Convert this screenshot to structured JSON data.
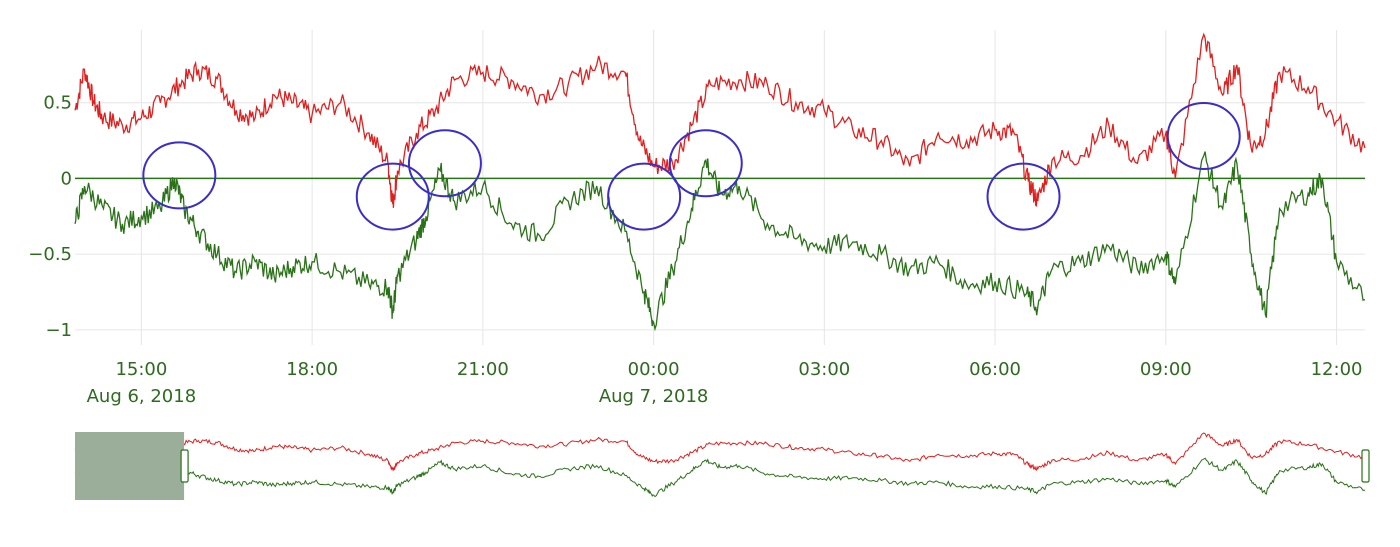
{
  "chart_data": {
    "type": "line",
    "x_range": [
      "2018-08-06T13:50",
      "2018-08-07T12:30"
    ],
    "ylim": [
      -1.1,
      0.98
    ],
    "y_ticks": [
      0.5,
      0,
      -0.5,
      -1
    ],
    "y_tick_labels": [
      "0.5",
      "0",
      "−0.5",
      "−1"
    ],
    "x_ticks": [
      {
        "time": "2018-08-06T15:00",
        "label": "15:00",
        "date_label": "Aug 6, 2018"
      },
      {
        "time": "2018-08-06T18:00",
        "label": "18:00",
        "date_label": ""
      },
      {
        "time": "2018-08-06T21:00",
        "label": "21:00",
        "date_label": ""
      },
      {
        "time": "2018-08-07T00:00",
        "label": "00:00",
        "date_label": "Aug 7, 2018"
      },
      {
        "time": "2018-08-07T03:00",
        "label": "03:00",
        "date_label": ""
      },
      {
        "time": "2018-08-07T06:00",
        "label": "06:00",
        "date_label": ""
      },
      {
        "time": "2018-08-07T09:00",
        "label": "09:00",
        "date_label": ""
      },
      {
        "time": "2018-08-07T12:00",
        "label": "12:00",
        "date_label": ""
      }
    ],
    "grid": true,
    "zero_line": true,
    "range_slider": true,
    "range_slider_selection": [
      "2018-08-06T13:50",
      "2018-08-06T15:45"
    ],
    "series": [
      {
        "color": "#e0201f",
        "points": [
          [
            "2018-08-06T13:50",
            0.45
          ],
          [
            "2018-08-06T14:00",
            0.72
          ],
          [
            "2018-08-06T14:10",
            0.5
          ],
          [
            "2018-08-06T14:20",
            0.4
          ],
          [
            "2018-08-06T14:40",
            0.35
          ],
          [
            "2018-08-06T15:00",
            0.4
          ],
          [
            "2018-08-06T15:20",
            0.5
          ],
          [
            "2018-08-06T15:40",
            0.62
          ],
          [
            "2018-08-06T16:00",
            0.72
          ],
          [
            "2018-08-06T16:20",
            0.66
          ],
          [
            "2018-08-06T16:40",
            0.45
          ],
          [
            "2018-08-06T17:00",
            0.4
          ],
          [
            "2018-08-06T17:20",
            0.55
          ],
          [
            "2018-08-06T17:40",
            0.5
          ],
          [
            "2018-08-06T18:00",
            0.42
          ],
          [
            "2018-08-06T18:30",
            0.5
          ],
          [
            "2018-08-06T19:00",
            0.3
          ],
          [
            "2018-08-06T19:20",
            0.1
          ],
          [
            "2018-08-06T19:25",
            -0.17
          ],
          [
            "2018-08-06T19:30",
            0.05
          ],
          [
            "2018-08-06T19:50",
            0.3
          ],
          [
            "2018-08-06T20:10",
            0.45
          ],
          [
            "2018-08-06T20:30",
            0.65
          ],
          [
            "2018-08-06T21:00",
            0.7
          ],
          [
            "2018-08-06T21:30",
            0.65
          ],
          [
            "2018-08-06T22:00",
            0.55
          ],
          [
            "2018-08-06T22:30",
            0.62
          ],
          [
            "2018-08-06T23:00",
            0.75
          ],
          [
            "2018-08-06T23:30",
            0.7
          ],
          [
            "2018-08-06T23:45",
            0.25
          ],
          [
            "2018-08-07T00:00",
            0.08
          ],
          [
            "2018-08-07T00:20",
            0.1
          ],
          [
            "2018-08-07T00:40",
            0.35
          ],
          [
            "2018-08-07T01:00",
            0.62
          ],
          [
            "2018-08-07T01:30",
            0.65
          ],
          [
            "2018-08-07T02:00",
            0.62
          ],
          [
            "2018-08-07T02:30",
            0.5
          ],
          [
            "2018-08-07T03:00",
            0.45
          ],
          [
            "2018-08-07T03:30",
            0.32
          ],
          [
            "2018-08-07T04:00",
            0.25
          ],
          [
            "2018-08-07T04:30",
            0.08
          ],
          [
            "2018-08-07T05:00",
            0.3
          ],
          [
            "2018-08-07T05:30",
            0.25
          ],
          [
            "2018-08-07T06:00",
            0.32
          ],
          [
            "2018-08-07T06:20",
            0.3
          ],
          [
            "2018-08-07T06:35",
            -0.02
          ],
          [
            "2018-08-07T06:45",
            -0.15
          ],
          [
            "2018-08-07T07:00",
            0.12
          ],
          [
            "2018-08-07T07:30",
            0.15
          ],
          [
            "2018-08-07T08:00",
            0.35
          ],
          [
            "2018-08-07T08:30",
            0.1
          ],
          [
            "2018-08-07T09:00",
            0.3
          ],
          [
            "2018-08-07T09:10",
            0.0
          ],
          [
            "2018-08-07T09:40",
            0.95
          ],
          [
            "2018-08-07T10:00",
            0.55
          ],
          [
            "2018-08-07T10:15",
            0.75
          ],
          [
            "2018-08-07T10:30",
            0.2
          ],
          [
            "2018-08-07T10:45",
            0.3
          ],
          [
            "2018-08-07T11:00",
            0.7
          ],
          [
            "2018-08-07T11:30",
            0.6
          ],
          [
            "2018-08-07T12:00",
            0.38
          ],
          [
            "2018-08-07T12:30",
            0.2
          ]
        ]
      },
      {
        "color": "#2a7218",
        "points": [
          [
            "2018-08-06T13:50",
            -0.3
          ],
          [
            "2018-08-06T14:00",
            -0.05
          ],
          [
            "2018-08-06T14:20",
            -0.2
          ],
          [
            "2018-08-06T14:40",
            -0.3
          ],
          [
            "2018-08-06T15:00",
            -0.25
          ],
          [
            "2018-08-06T15:20",
            -0.2
          ],
          [
            "2018-08-06T15:35",
            0.0
          ],
          [
            "2018-08-06T15:45",
            -0.2
          ],
          [
            "2018-08-06T16:00",
            -0.35
          ],
          [
            "2018-08-06T16:20",
            -0.5
          ],
          [
            "2018-08-06T16:40",
            -0.62
          ],
          [
            "2018-08-06T17:00",
            -0.55
          ],
          [
            "2018-08-06T17:20",
            -0.65
          ],
          [
            "2018-08-06T17:40",
            -0.58
          ],
          [
            "2018-08-06T18:00",
            -0.55
          ],
          [
            "2018-08-06T18:30",
            -0.62
          ],
          [
            "2018-08-06T19:00",
            -0.7
          ],
          [
            "2018-08-06T19:20",
            -0.72
          ],
          [
            "2018-08-06T19:25",
            -0.88
          ],
          [
            "2018-08-06T19:30",
            -0.65
          ],
          [
            "2018-08-06T19:50",
            -0.4
          ],
          [
            "2018-08-06T20:00",
            -0.25
          ],
          [
            "2018-08-06T20:15",
            0.05
          ],
          [
            "2018-08-06T20:30",
            -0.15
          ],
          [
            "2018-08-06T21:00",
            -0.05
          ],
          [
            "2018-08-06T21:30",
            -0.3
          ],
          [
            "2018-08-06T22:00",
            -0.38
          ],
          [
            "2018-08-06T22:30",
            -0.15
          ],
          [
            "2018-08-06T23:00",
            -0.05
          ],
          [
            "2018-08-06T23:30",
            -0.35
          ],
          [
            "2018-08-06T23:50",
            -0.75
          ],
          [
            "2018-08-07T00:00",
            -0.95
          ],
          [
            "2018-08-07T00:20",
            -0.6
          ],
          [
            "2018-08-07T00:40",
            -0.2
          ],
          [
            "2018-08-07T00:55",
            0.12
          ],
          [
            "2018-08-07T01:10",
            -0.1
          ],
          [
            "2018-08-07T01:30",
            -0.05
          ],
          [
            "2018-08-07T02:00",
            -0.3
          ],
          [
            "2018-08-07T02:30",
            -0.4
          ],
          [
            "2018-08-07T03:00",
            -0.45
          ],
          [
            "2018-08-07T03:30",
            -0.42
          ],
          [
            "2018-08-07T04:00",
            -0.5
          ],
          [
            "2018-08-07T04:30",
            -0.6
          ],
          [
            "2018-08-07T05:00",
            -0.55
          ],
          [
            "2018-08-07T05:30",
            -0.7
          ],
          [
            "2018-08-07T06:00",
            -0.68
          ],
          [
            "2018-08-07T06:30",
            -0.75
          ],
          [
            "2018-08-07T06:45",
            -0.85
          ],
          [
            "2018-08-07T07:00",
            -0.6
          ],
          [
            "2018-08-07T07:30",
            -0.55
          ],
          [
            "2018-08-07T08:00",
            -0.45
          ],
          [
            "2018-08-07T08:30",
            -0.6
          ],
          [
            "2018-08-07T09:00",
            -0.5
          ],
          [
            "2018-08-07T09:10",
            -0.7
          ],
          [
            "2018-08-07T09:40",
            0.15
          ],
          [
            "2018-08-07T10:00",
            -0.2
          ],
          [
            "2018-08-07T10:15",
            0.1
          ],
          [
            "2018-08-07T10:30",
            -0.5
          ],
          [
            "2018-08-07T10:45",
            -0.9
          ],
          [
            "2018-08-07T11:00",
            -0.2
          ],
          [
            "2018-08-07T11:30",
            -0.1
          ],
          [
            "2018-08-07T11:45",
            0.0
          ],
          [
            "2018-08-07T12:00",
            -0.55
          ],
          [
            "2018-08-07T12:30",
            -0.8
          ]
        ]
      }
    ],
    "annotations": {
      "shape": "ellipse",
      "color": "#3b2dc8",
      "marked_points": [
        {
          "time": "2018-08-06T15:40",
          "value": 0.02
        },
        {
          "time": "2018-08-06T19:25",
          "value": -0.12
        },
        {
          "time": "2018-08-06T20:20",
          "value": 0.1
        },
        {
          "time": "2018-08-06T23:50",
          "value": -0.12
        },
        {
          "time": "2018-08-07T00:55",
          "value": 0.1
        },
        {
          "time": "2018-08-07T06:30",
          "value": -0.12
        },
        {
          "time": "2018-08-07T09:40",
          "value": 0.28
        }
      ]
    }
  }
}
